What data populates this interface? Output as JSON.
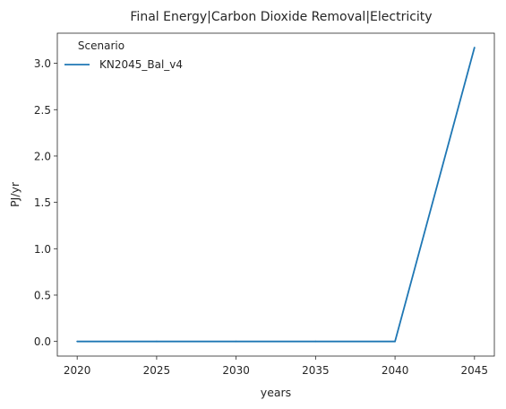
{
  "chart_data": {
    "type": "line",
    "title": "Final Energy|Carbon Dioxide Removal|Electricity",
    "xlabel": "years",
    "ylabel": "PJ/yr",
    "x_ticks": [
      "2020",
      "2025",
      "2030",
      "2035",
      "2040",
      "2045"
    ],
    "y_ticks": [
      "0.0",
      "0.5",
      "1.0",
      "1.5",
      "2.0",
      "2.5",
      "3.0"
    ],
    "xlim": [
      2018.75,
      2046.25
    ],
    "ylim": [
      -0.158,
      3.325
    ],
    "grid": false,
    "legend": {
      "title": "Scenario",
      "placement": "top-left"
    },
    "series": [
      {
        "name": "KN2045_Bal_v4",
        "color": "#1f77b4",
        "x": [
          2020,
          2025,
          2030,
          2035,
          2040,
          2045
        ],
        "y": [
          0.0,
          0.0,
          0.0,
          0.0,
          0.0,
          3.17
        ]
      }
    ]
  }
}
